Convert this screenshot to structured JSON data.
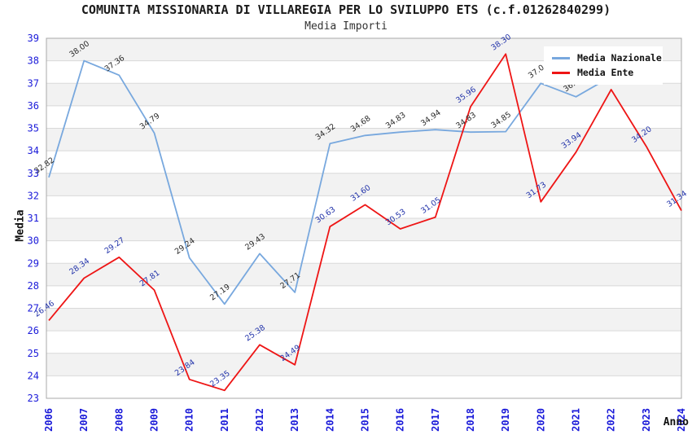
{
  "title": "COMUNITA MISSIONARIA DI VILLAREGIA PER LO SVILUPPO ETS (c.f.01262840299)",
  "subtitle": "Media Importi",
  "axes": {
    "y_title": "Media",
    "x_title": "Anno",
    "y_ticks": [
      "23",
      "24",
      "25",
      "26",
      "27",
      "28",
      "29",
      "30",
      "31",
      "32",
      "33",
      "34",
      "35",
      "36",
      "37",
      "38",
      "39"
    ],
    "x_ticks": [
      "2006",
      "2007",
      "2008",
      "2009",
      "2010",
      "2011",
      "2012",
      "2013",
      "2014",
      "2015",
      "2016",
      "2017",
      "2018",
      "2019",
      "2020",
      "2021",
      "2022",
      "2023",
      "2024"
    ]
  },
  "legend": {
    "items": [
      {
        "label": "Media Nazionale",
        "color": "#78a8de"
      },
      {
        "label": "Media Ente",
        "color": "#ee1515"
      }
    ]
  },
  "colors": {
    "tick_text": "#1a1ad9",
    "band_gray": "#f2f2f2",
    "gridline": "#d9d9d9",
    "plot_border": "#a8a8a8",
    "nazionale_line": "#78a8de",
    "ente_line": "#ee1515",
    "nazionale_label_text": "#2a2a2a",
    "ente_label_text": "#2233aa"
  },
  "chart_data": {
    "type": "line",
    "title": "COMUNITA MISSIONARIA DI VILLAREGIA PER LO SVILUPPO ETS (c.f.01262840299)",
    "subtitle": "Media Importi",
    "xlabel": "Anno",
    "ylabel": "Media",
    "ylim": [
      23,
      39
    ],
    "grid": true,
    "legend_position": "top-right",
    "x": [
      "2006",
      "2007",
      "2008",
      "2009",
      "2010",
      "2011",
      "2012",
      "2013",
      "2014",
      "2015",
      "2016",
      "2017",
      "2018",
      "2019",
      "2020",
      "2021",
      "2022",
      "2023",
      "2024"
    ],
    "series": [
      {
        "name": "Media Nazionale",
        "color": "#78a8de",
        "label_color": "#2a2a2a",
        "values": [
          32.82,
          38.0,
          37.36,
          34.79,
          29.24,
          27.19,
          29.43,
          27.71,
          34.32,
          34.68,
          34.83,
          34.94,
          34.83,
          34.85,
          37.0,
          36.4,
          37.3
        ],
        "labels": [
          "32.82",
          "38.00",
          "37.36",
          "34.79",
          "29.24",
          "27.19",
          "29.43",
          "27.71",
          "34.32",
          "34.68",
          "34.83",
          "34.94",
          "34.83",
          "34.85",
          "37.0",
          "36.4",
          ""
        ]
      },
      {
        "name": "Media Ente",
        "color": "#ee1515",
        "label_color": "#2233aa",
        "values": [
          26.46,
          28.34,
          29.27,
          27.81,
          23.84,
          23.35,
          25.38,
          24.49,
          30.63,
          31.6,
          30.53,
          31.05,
          35.96,
          38.3,
          31.73,
          33.94,
          36.72,
          34.2,
          31.34
        ],
        "labels": [
          "26.46",
          "28.34",
          "29.27",
          "27.81",
          "23.84",
          "23.35",
          "25.38",
          "24.49",
          "30.63",
          "31.60",
          "30.53",
          "31.05",
          "35.96",
          "38.30",
          "31.73",
          "33.94",
          "",
          "34.20",
          "31.34"
        ]
      }
    ]
  }
}
